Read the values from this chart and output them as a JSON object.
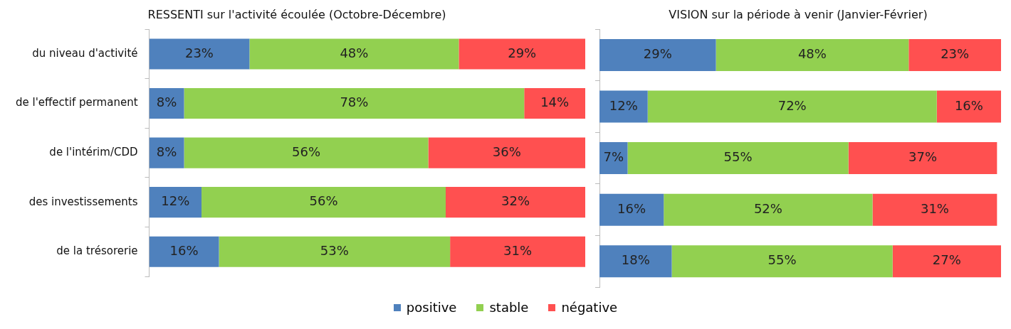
{
  "chart_data": [
    {
      "type": "bar",
      "orientation": "horizontal",
      "stacked": true,
      "title": "RESSENTI sur l'activité écoulée (Octobre-Décembre)",
      "categories": [
        "du niveau d'activité",
        "de l'effectif permanent",
        "de l'intérim/CDD",
        "des investissements",
        "de la trésorerie"
      ],
      "series": [
        {
          "name": "positive",
          "color": "#4f81bd",
          "values": [
            23,
            8,
            8,
            12,
            16
          ],
          "value_labels": [
            "23%",
            "8%",
            "8%",
            "12%",
            "16%"
          ]
        },
        {
          "name": "stable",
          "color": "#92d050",
          "values": [
            48,
            78,
            56,
            56,
            53
          ],
          "value_labels": [
            "48%",
            "78%",
            "56%",
            "56%",
            "53%"
          ]
        },
        {
          "name": "négative",
          "color": "#ff5050",
          "values": [
            29,
            14,
            36,
            32,
            31
          ],
          "value_labels": [
            "29%",
            "14%",
            "36%",
            "32%",
            "31%"
          ]
        }
      ],
      "legend": "bottom",
      "tick_labels": "y"
    },
    {
      "type": "bar",
      "orientation": "horizontal",
      "stacked": true,
      "title": "VISION sur la période à venir (Janvier-Février)",
      "categories": [
        null,
        null,
        null,
        null,
        null
      ],
      "series": [
        {
          "color": "#4f81bd",
          "values": [
            29,
            12,
            7,
            16,
            18
          ],
          "value_labels": [
            "29%",
            "12%",
            "7%",
            "16%",
            "18%"
          ]
        },
        {
          "color": "#92d050",
          "values": [
            48,
            72,
            55,
            52,
            55
          ],
          "value_labels": [
            "48%",
            "72%",
            "55%",
            "52%",
            "55%"
          ]
        },
        {
          "color": "#ff5050",
          "values": [
            23,
            16,
            37,
            31,
            27
          ],
          "value_labels": [
            "23%",
            "16%",
            "37%",
            "31%",
            "27%"
          ]
        }
      ],
      "tick_labels": false
    }
  ]
}
